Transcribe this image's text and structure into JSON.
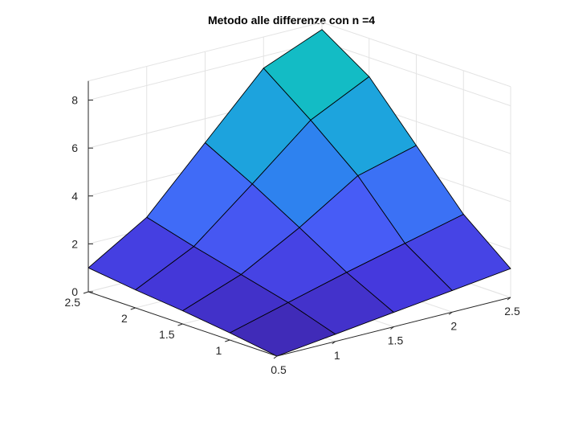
{
  "chart_data": {
    "type": "surface",
    "title": "Metodo alle differenze con n =4",
    "x": [
      0.5,
      1,
      1.5,
      2,
      2.5
    ],
    "y": [
      0.5,
      1,
      1.5,
      2,
      2.5
    ],
    "z": [
      [
        0.0,
        0.3,
        0.55,
        0.75,
        1.0
      ],
      [
        0.3,
        0.95,
        1.45,
        1.95,
        2.5
      ],
      [
        0.6,
        1.6,
        2.8,
        3.95,
        5.0
      ],
      [
        0.9,
        2.2,
        4.35,
        6.0,
        7.5
      ],
      [
        1.2,
        2.8,
        5.0,
        7.2,
        8.5
      ]
    ],
    "xticks": [
      "0.5",
      "1",
      "1.5",
      "2",
      "2.5"
    ],
    "yticks": [
      "1",
      "1.5",
      "2",
      "2.5"
    ],
    "zticks": [
      "0",
      "2",
      "4",
      "6",
      "8"
    ],
    "xlim": [
      0.5,
      2.5
    ],
    "ylim": [
      0.5,
      2.5
    ],
    "zlim": [
      0,
      8.5
    ],
    "grid": true,
    "colors": {
      "low": "#3e26a8",
      "mid": "#4a58f0",
      "high": "#16c3b5"
    }
  }
}
